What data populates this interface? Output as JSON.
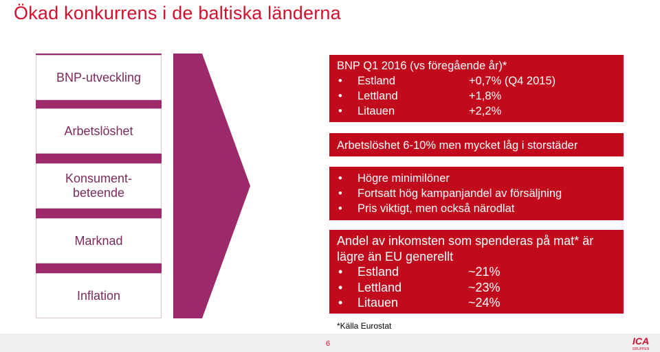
{
  "title": "Ökad konkurrens i de baltiska länderna",
  "left_labels": [
    {
      "line1": "BNP-utveckling",
      "line2": ""
    },
    {
      "line1": "Arbetslöshet",
      "line2": ""
    },
    {
      "line1": "Konsument-",
      "line2": "beteende"
    },
    {
      "line1": "Marknad",
      "line2": ""
    },
    {
      "line1": "Inflation",
      "line2": ""
    }
  ],
  "boxes": {
    "gdp": {
      "header": "BNP Q1 2016 (vs föregående år)*",
      "items": [
        {
          "label": "Estland",
          "value": "+0,7% (Q4 2015)"
        },
        {
          "label": "Lettland",
          "value": "+1,8%"
        },
        {
          "label": "Litauen",
          "value": "+2,2%"
        }
      ]
    },
    "unemployment": {
      "header": "Arbetslöshet 6-10% men mycket låg i storstäder"
    },
    "consumer": {
      "items": [
        {
          "label": "Högre minimilöner"
        },
        {
          "label": "Fortsatt hög kampanjandel av försäljning"
        },
        {
          "label": "Pris viktigt, men också närodlat"
        }
      ]
    },
    "market": {
      "header_line1": "Andel av inkomsten som spenderas på mat* är",
      "header_line2": "lägre än EU generellt",
      "items": [
        {
          "label": "Estland",
          "value": "~21%"
        },
        {
          "label": "Lettland",
          "value": "~23%"
        },
        {
          "label": "Litauen",
          "value": "~24%"
        }
      ]
    }
  },
  "footnote": "*Källa Eurostat",
  "page_number": "6",
  "logo": {
    "text": "ICA",
    "subtext": "GRUPPEN",
    "icon": "ica-logo-icon"
  },
  "colors": {
    "accent_red": "#c20a1d",
    "title_red": "#d2102d",
    "purple": "#9c2a6a",
    "label_purple": "#7b2a5e"
  }
}
